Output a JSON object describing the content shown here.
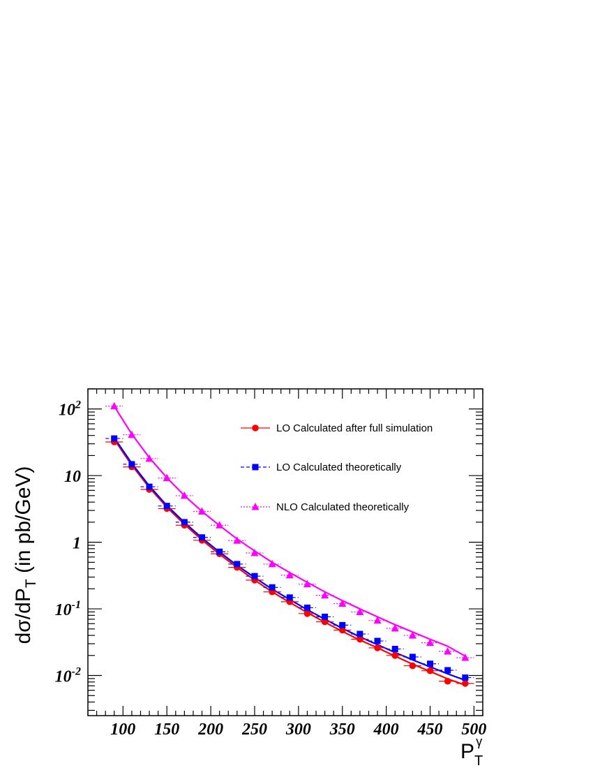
{
  "chart_data": {
    "type": "scatter",
    "title": "",
    "xlabel": {
      "main": "P",
      "sub": "T",
      "sup": "γ"
    },
    "ylabel": {
      "pre": "dσ/dP",
      "sub": "T",
      "post": " (in pb/GeV)"
    },
    "xlim": [
      60,
      510
    ],
    "ylim": [
      0.0025,
      200
    ],
    "yscale": "log",
    "grid": false,
    "legend_position": "top-right",
    "x_ticks": [
      100,
      150,
      200,
      250,
      300,
      350,
      400,
      450,
      500
    ],
    "y_ticks": [
      {
        "value": 0.01,
        "base": "10",
        "exp": "-2"
      },
      {
        "value": 0.1,
        "base": "10",
        "exp": "-1"
      },
      {
        "value": 1,
        "base": "1",
        "exp": ""
      },
      {
        "value": 10,
        "base": "10",
        "exp": ""
      },
      {
        "value": 100,
        "base": "10",
        "exp": "2"
      }
    ],
    "x": [
      90,
      110,
      130,
      150,
      170,
      190,
      210,
      230,
      250,
      270,
      290,
      310,
      330,
      350,
      370,
      390,
      410,
      430,
      450,
      470,
      490
    ],
    "x_err": 10,
    "series": [
      {
        "name": "LO Calculated after full simulation",
        "color": "#ff0000",
        "marker": "circle",
        "line": "solid",
        "values": [
          32,
          13.5,
          6.2,
          3.2,
          1.8,
          1.07,
          0.67,
          0.42,
          0.27,
          0.18,
          0.128,
          0.085,
          0.064,
          0.048,
          0.035,
          0.026,
          0.02,
          0.014,
          0.0118,
          0.0082,
          0.0076
        ]
      },
      {
        "name": "LO Calculated theoretically",
        "color": "#0000ff",
        "marker": "square",
        "line": "dashed",
        "values": [
          36,
          14.8,
          6.8,
          3.5,
          2.0,
          1.18,
          0.72,
          0.47,
          0.31,
          0.21,
          0.148,
          0.104,
          0.076,
          0.057,
          0.042,
          0.033,
          0.025,
          0.019,
          0.015,
          0.012,
          0.0093
        ]
      },
      {
        "name": "NLO Calculated theoretically",
        "color": "#ff00ff",
        "marker": "triangle",
        "line": "dotted",
        "values": [
          110,
          41,
          18,
          9.2,
          5.0,
          2.9,
          1.8,
          1.06,
          0.69,
          0.47,
          0.32,
          0.235,
          0.16,
          0.12,
          0.09,
          0.067,
          0.051,
          0.04,
          0.031,
          0.023,
          0.0185
        ]
      }
    ],
    "fit_curves": [
      {
        "color": "#ff0000",
        "values": [
          35,
          14.3,
          6.6,
          3.35,
          1.85,
          1.08,
          0.66,
          0.42,
          0.27,
          0.18,
          0.125,
          0.088,
          0.063,
          0.046,
          0.034,
          0.026,
          0.0195,
          0.0148,
          0.0115,
          0.0089,
          0.0072
        ]
      },
      {
        "color": "#0000ff",
        "values": [
          37,
          15.2,
          7.0,
          3.55,
          1.98,
          1.16,
          0.71,
          0.45,
          0.295,
          0.198,
          0.138,
          0.097,
          0.07,
          0.051,
          0.038,
          0.029,
          0.0222,
          0.0172,
          0.0135,
          0.0106,
          0.0085
        ]
      },
      {
        "color": "#ff00ff",
        "values": [
          110,
          42,
          18.6,
          9.3,
          5.0,
          2.9,
          1.78,
          1.12,
          0.74,
          0.5,
          0.35,
          0.25,
          0.18,
          0.133,
          0.1,
          0.076,
          0.058,
          0.045,
          0.035,
          0.0275,
          0.0195
        ]
      }
    ]
  }
}
